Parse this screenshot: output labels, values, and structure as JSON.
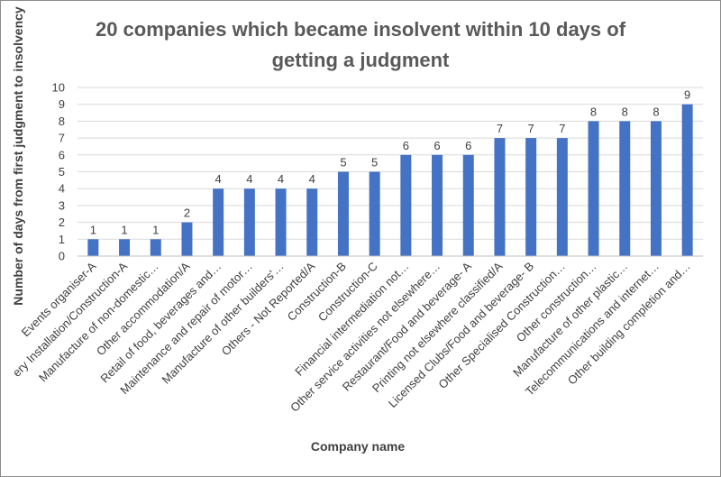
{
  "chart_data": {
    "type": "bar",
    "title_lines": [
      "20 companies which became insolvent within 10 days of",
      "getting a judgment"
    ],
    "xlabel": "Company name",
    "ylabel": "Number of days from first judgment to insolvency",
    "ylim": [
      0,
      10
    ],
    "yticks": [
      0,
      1,
      2,
      3,
      4,
      5,
      6,
      7,
      8,
      9,
      10
    ],
    "grid": true,
    "bar_color": "#4472c4",
    "categories": [
      "Events organiser-A",
      "ery Installation/Construction-A",
      "Manufacture of non-domestic…",
      "Other accommodation/A",
      "Retail of food, beverages and…",
      "Maintenance and repair of motor…",
      "Manufacture of other builders'…",
      "Others - Not Reported/A",
      "Construction-B",
      "Construction-C",
      "Financial intermediation not…",
      "Other service activities not elsewhere…",
      "Restaurant/Food and beverage- A",
      "Printing not elsewhere classified/A",
      "Licensed Clubs/Food and beverage- B",
      "Other Specialised Construction…",
      "Other construction…",
      "Manufacture of other plastic…",
      "Telecommunications and internet…",
      "Other building completion and…"
    ],
    "values": [
      1,
      1,
      1,
      2,
      4,
      4,
      4,
      4,
      5,
      5,
      6,
      6,
      6,
      7,
      7,
      7,
      8,
      8,
      8,
      9
    ]
  }
}
